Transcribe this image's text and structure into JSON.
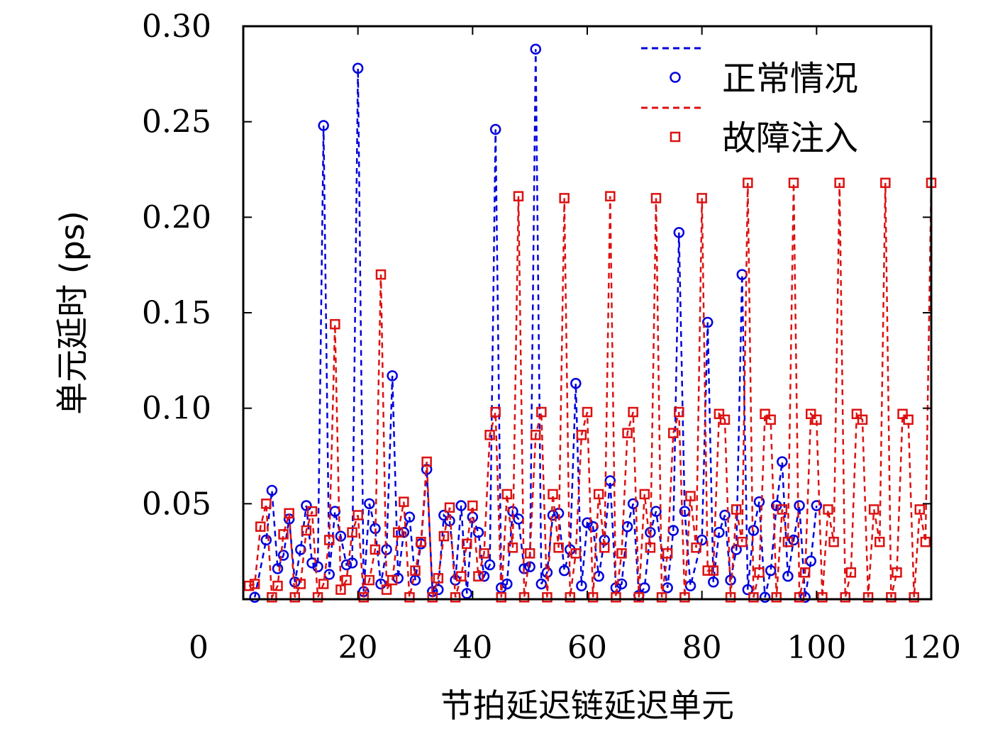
{
  "chart_data": {
    "type": "line",
    "xlabel": "节拍延迟链延迟单元",
    "ylabel": "单元延时 (ps)",
    "xlim": [
      0,
      120
    ],
    "ylim": [
      0,
      0.3
    ],
    "x_ticks": [
      0,
      20,
      40,
      60,
      80,
      100,
      120
    ],
    "x_tick_labels": [
      "0",
      "20",
      "40",
      "60",
      "80",
      "100",
      "120"
    ],
    "y_ticks": [
      0.05,
      0.1,
      0.15,
      0.2,
      0.25,
      0.3
    ],
    "y_tick_labels": [
      "0.05",
      "0.10",
      "0.15",
      "0.20",
      "0.25",
      "0.30"
    ],
    "grid": false,
    "legend_position": "top-right",
    "series": [
      {
        "name": "正常情况",
        "color": "#0000dd",
        "line_style": "dashed",
        "marker": "circle",
        "values": [
          0.001,
          0.031,
          0.057,
          0.016,
          0.023,
          0.042,
          0.009,
          0.026,
          0.049,
          0.019,
          0.017,
          0.248,
          0.013,
          0.046,
          0.033,
          0.018,
          0.019,
          0.278,
          0.004,
          0.05,
          0.037,
          0.008,
          0.026,
          0.117,
          0.011,
          0.035,
          0.043,
          0.01,
          0.029,
          0.068,
          0.004,
          0.005,
          0.044,
          0.041,
          0.01,
          0.049,
          0.003,
          0.043,
          0.035,
          0.012,
          0.018,
          0.246,
          0.006,
          0.008,
          0.046,
          0.042,
          0.016,
          0.017,
          0.288,
          0.008,
          0.014,
          0.044,
          0.045,
          0.015,
          0.026,
          0.113,
          0.007,
          0.04,
          0.038,
          0.012,
          0.031,
          0.062,
          0.006,
          0.008,
          0.038,
          0.05,
          0.002,
          0.006,
          0.035,
          0.046,
          0.006,
          0.036,
          0.192,
          0.046,
          0.007,
          0.031,
          0.145,
          0.009,
          0.035,
          0.044,
          0.01,
          0.026,
          0.17,
          0.005,
          0.036,
          0.051,
          0.001,
          0.015,
          0.049,
          0.072,
          0.012,
          0.031,
          0.049,
          0.001,
          0.02,
          0.049
        ],
        "x": [
          2,
          4,
          5,
          6,
          7,
          8,
          9,
          10,
          11,
          12,
          13,
          14,
          15,
          16,
          17,
          18,
          19,
          20,
          21,
          22,
          23,
          24,
          25,
          26,
          27,
          28,
          29,
          30,
          31,
          32,
          33,
          34,
          35,
          36,
          37,
          38,
          39,
          40,
          41,
          42,
          43,
          44,
          45,
          46,
          47,
          48,
          49,
          50,
          51,
          52,
          53,
          54,
          55,
          56,
          57,
          58,
          59,
          60,
          61,
          62,
          63,
          64,
          65,
          66,
          67,
          68,
          69,
          70,
          71,
          72,
          74,
          75,
          76,
          77,
          78,
          80,
          81,
          82,
          83,
          84,
          85,
          86,
          87,
          88,
          89,
          90,
          91,
          92,
          93,
          94,
          95,
          96,
          97,
          98,
          99,
          100
        ]
      },
      {
        "name": "故障注入",
        "color": "#dd1111",
        "line_style": "dashed",
        "marker": "square",
        "values": [
          0.007,
          0.008,
          0.038,
          0.05,
          0.001,
          0.007,
          0.034,
          0.045,
          0.001,
          0.008,
          0.036,
          0.046,
          0.001,
          0.008,
          0.031,
          0.144,
          0.005,
          0.01,
          0.035,
          0.044,
          0.001,
          0.01,
          0.026,
          0.17,
          0.005,
          0.01,
          0.035,
          0.051,
          0.001,
          0.015,
          0.03,
          0.072,
          0.001,
          0.011,
          0.033,
          0.048,
          0.001,
          0.012,
          0.029,
          0.049,
          0.012,
          0.024,
          0.086,
          0.098,
          0.001,
          0.055,
          0.027,
          0.211,
          0.001,
          0.024,
          0.086,
          0.098,
          0.001,
          0.055,
          0.027,
          0.21,
          0.001,
          0.024,
          0.086,
          0.098,
          0.001,
          0.055,
          0.027,
          0.211,
          0.001,
          0.024,
          0.087,
          0.098,
          0.001,
          0.055,
          0.027,
          0.21,
          0.001,
          0.024,
          0.087,
          0.098,
          0.001,
          0.054,
          0.027,
          0.21,
          0.015,
          0.015,
          0.097,
          0.094,
          0.001,
          0.047,
          0.03,
          0.218,
          0.001,
          0.014,
          0.097,
          0.094,
          0.001,
          0.047,
          0.03,
          0.218,
          0.001,
          0.014,
          0.097,
          0.094,
          0.001,
          0.047,
          0.03,
          0.218,
          0.001,
          0.014,
          0.097,
          0.094,
          0.001,
          0.047,
          0.03,
          0.218,
          0.001,
          0.014,
          0.097,
          0.094,
          0.001,
          0.047,
          0.03,
          0.218
        ],
        "x": [
          1,
          2,
          3,
          4,
          5,
          6,
          7,
          8,
          9,
          10,
          11,
          12,
          13,
          14,
          15,
          16,
          17,
          18,
          19,
          20,
          21,
          22,
          23,
          24,
          25,
          26,
          27,
          28,
          29,
          30,
          31,
          32,
          33,
          34,
          35,
          36,
          37,
          38,
          39,
          40,
          41,
          42,
          43,
          44,
          45,
          46,
          47,
          48,
          49,
          50,
          51,
          52,
          53,
          54,
          55,
          56,
          57,
          58,
          59,
          60,
          61,
          62,
          63,
          64,
          65,
          66,
          67,
          68,
          69,
          70,
          71,
          72,
          73,
          74,
          75,
          76,
          77,
          78,
          79,
          80,
          81,
          82,
          83,
          84,
          85,
          86,
          87,
          88,
          89,
          90,
          91,
          92,
          93,
          94,
          95,
          96,
          97,
          98,
          99,
          100,
          101,
          102,
          103,
          104,
          105,
          106,
          107,
          108,
          109,
          110,
          111,
          112,
          113,
          114,
          115,
          116,
          117,
          118,
          119,
          120
        ]
      }
    ]
  }
}
